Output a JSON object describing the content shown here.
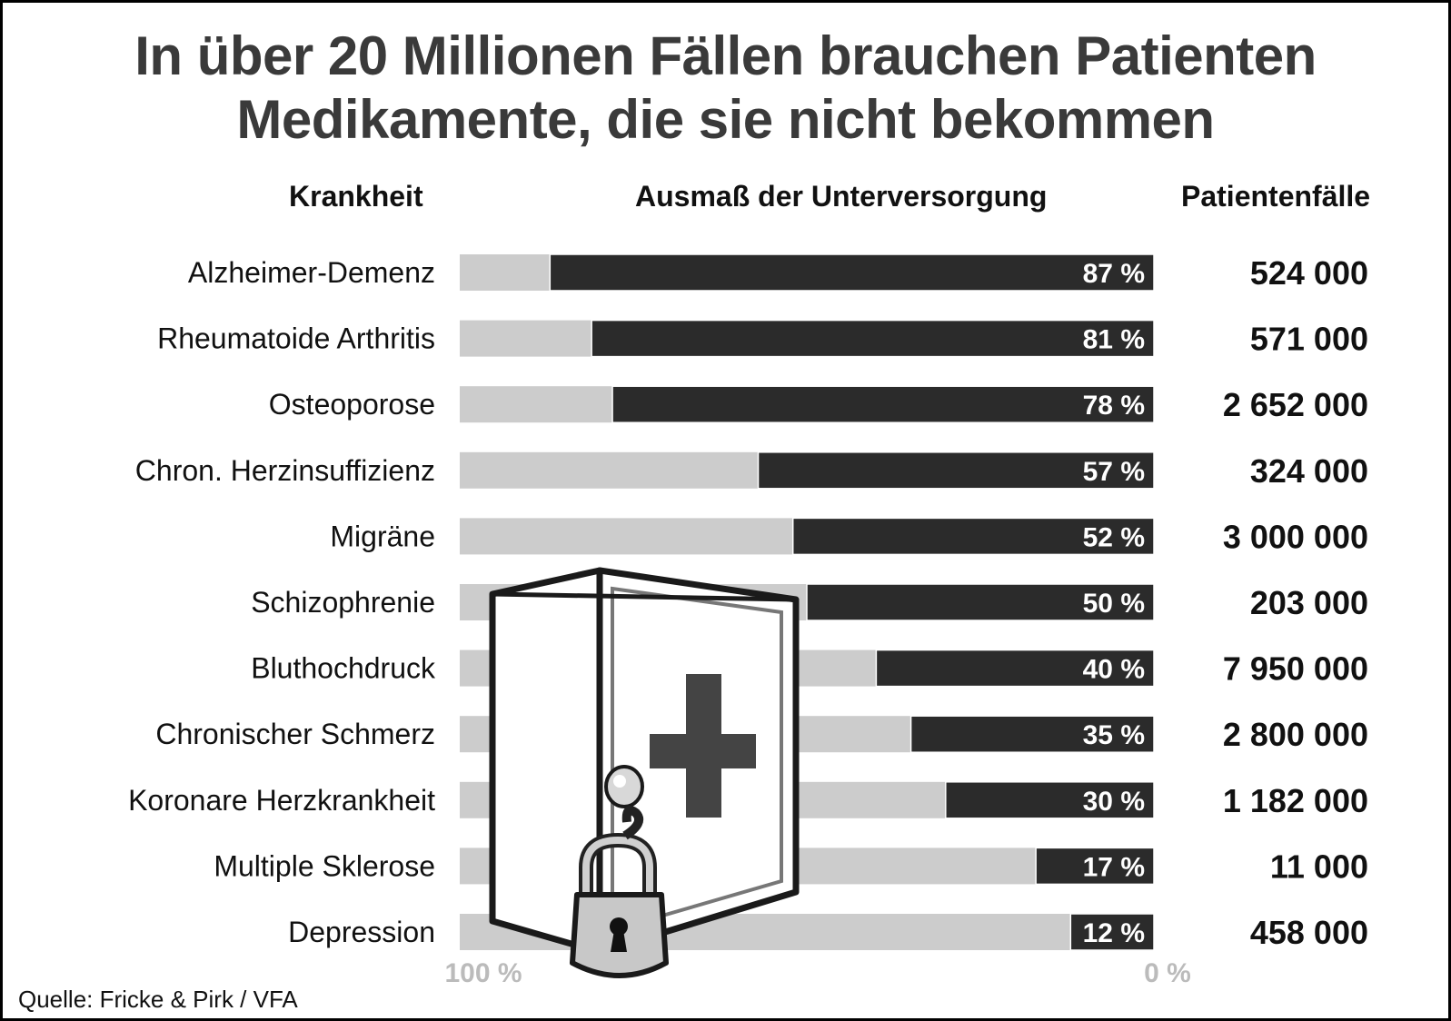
{
  "chart_data": {
    "type": "bar",
    "title_line1": "In über 20 Millionen Fällen brauchen Patienten",
    "title_line2": "Medikamente, die sie nicht bekommen",
    "headers": {
      "disease": "Krankheit",
      "undersupply": "Ausmaß der Unterversorgung",
      "cases": "Patientenfälle"
    },
    "categories": [
      "Alzheimer-Demenz",
      "Rheumatoide Arthritis",
      "Osteoporose",
      "Chron. Herzinsuffizienz",
      "Migräne",
      "Schizophrenie",
      "Bluthochdruck",
      "Chronischer Schmerz",
      "Koronare Herzkrankheit",
      "Multiple Sklerose",
      "Depression"
    ],
    "values": [
      87,
      81,
      78,
      57,
      52,
      50,
      40,
      35,
      30,
      17,
      12
    ],
    "value_labels": [
      "87 %",
      "81 %",
      "78 %",
      "57 %",
      "52 %",
      "50 %",
      "40 %",
      "35 %",
      "30 %",
      "17 %",
      "12 %"
    ],
    "patient_cases": [
      "524 000",
      "571 000",
      "2 652 000",
      "324 000",
      "3 000 000",
      "203 000",
      "7 950 000",
      "2 800 000",
      "1 182 000",
      "11 000",
      "458 000"
    ],
    "axis_left_label": "100 %",
    "axis_right_label": "0 %",
    "xlim": [
      100,
      0
    ],
    "source": "Quelle: Fricke & Pirk / VFA",
    "colors": {
      "filled": "#2b2b2b",
      "remainder": "#cccccc",
      "label_on_bar": "#ffffff",
      "axis_label": "#bbbbbb"
    }
  }
}
